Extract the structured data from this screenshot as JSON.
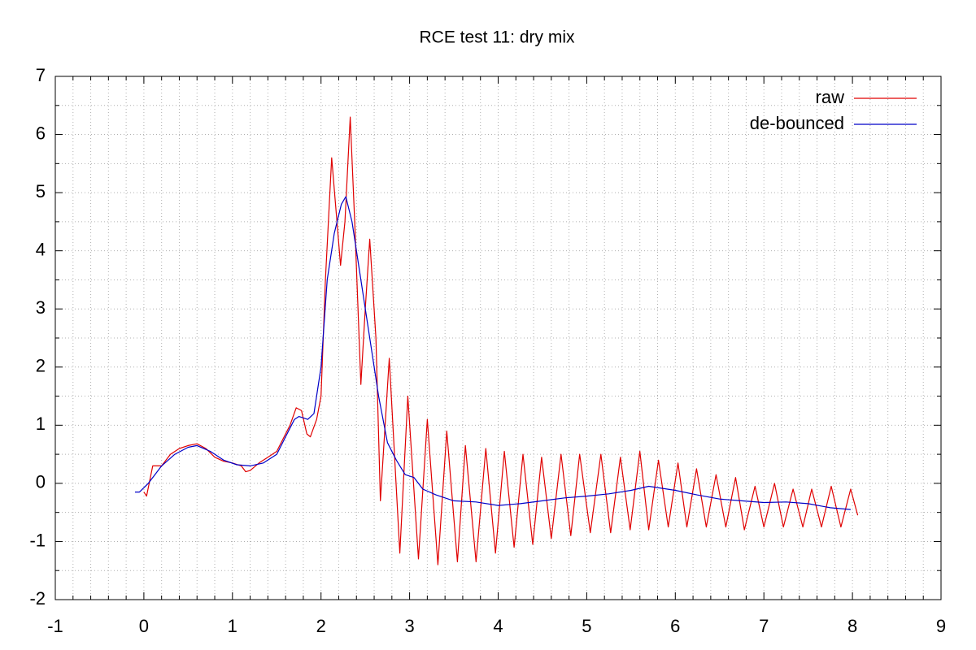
{
  "chart_data": {
    "type": "line",
    "title": "RCE test 11: dry mix",
    "xlim": [
      -1,
      9
    ],
    "ylim": [
      -2,
      7
    ],
    "xticks": [
      -1,
      0,
      1,
      2,
      3,
      4,
      5,
      6,
      7,
      8,
      9
    ],
    "yticks": [
      -2,
      -1,
      0,
      1,
      2,
      3,
      4,
      5,
      6,
      7
    ],
    "xminor": [
      -0.8,
      -0.6,
      -0.4,
      -0.2,
      0.2,
      0.4,
      0.6,
      0.8,
      1.2,
      1.4,
      1.6,
      1.8,
      2.2,
      2.4,
      2.6,
      2.8,
      3.2,
      3.4,
      3.6,
      3.8,
      4.2,
      4.4,
      4.6,
      4.8,
      5.2,
      5.4,
      5.6,
      5.8,
      6.2,
      6.4,
      6.6,
      6.8,
      7.2,
      7.4,
      7.6,
      7.8,
      8.2,
      8.4,
      8.6,
      8.8
    ],
    "yminor": [
      -1.5,
      -0.5,
      0.5,
      1.5,
      2.5,
      3.5,
      4.5,
      5.5,
      6.5
    ],
    "grid": true,
    "legend": "top-right",
    "series": [
      {
        "name": "raw",
        "color": "#e00000",
        "x": [
          0,
          0.03,
          0.1,
          0.2,
          0.3,
          0.4,
          0.5,
          0.6,
          0.7,
          0.8,
          0.9,
          1.0,
          1.1,
          1.15,
          1.2,
          1.3,
          1.4,
          1.5,
          1.6,
          1.65,
          1.72,
          1.78,
          1.84,
          1.88,
          1.95,
          2.0,
          2.05,
          2.12,
          2.18,
          2.22,
          2.27,
          2.33,
          2.38,
          2.45,
          2.5,
          2.55,
          2.62,
          2.67,
          2.77,
          2.89,
          2.98,
          3.1,
          3.2,
          3.32,
          3.42,
          3.54,
          3.63,
          3.75,
          3.86,
          3.97,
          4.07,
          4.18,
          4.28,
          4.39,
          4.49,
          4.6,
          4.71,
          4.82,
          4.92,
          5.04,
          5.16,
          5.27,
          5.38,
          5.49,
          5.6,
          5.7,
          5.81,
          5.92,
          6.03,
          6.13,
          6.24,
          6.35,
          6.46,
          6.57,
          6.68,
          6.78,
          6.9,
          7.0,
          7.12,
          7.22,
          7.33,
          7.44,
          7.54,
          7.65,
          7.76,
          7.87,
          7.98,
          8.06
        ],
        "values": [
          -0.15,
          -0.22,
          0.3,
          0.3,
          0.5,
          0.6,
          0.65,
          0.68,
          0.6,
          0.45,
          0.38,
          0.35,
          0.3,
          0.2,
          0.22,
          0.35,
          0.45,
          0.55,
          0.85,
          1.0,
          1.3,
          1.25,
          0.85,
          0.8,
          1.1,
          1.5,
          3.5,
          5.6,
          4.5,
          3.75,
          4.5,
          6.3,
          4.5,
          1.7,
          3.0,
          4.2,
          2.5,
          -0.3,
          2.15,
          -1.2,
          1.5,
          -1.3,
          1.1,
          -1.4,
          0.9,
          -1.35,
          0.65,
          -1.35,
          0.6,
          -1.2,
          0.55,
          -1.1,
          0.5,
          -1.05,
          0.45,
          -0.95,
          0.5,
          -0.9,
          0.5,
          -0.85,
          0.5,
          -0.85,
          0.45,
          -0.8,
          0.55,
          -0.8,
          0.4,
          -0.75,
          0.35,
          -0.75,
          0.25,
          -0.75,
          0.15,
          -0.75,
          0.1,
          -0.8,
          -0.05,
          -0.75,
          0,
          -0.75,
          -0.1,
          -0.75,
          -0.1,
          -0.75,
          -0.05,
          -0.75,
          -0.1,
          -0.55
        ]
      },
      {
        "name": "de-bounced",
        "color": "#0000c8",
        "x": [
          -0.1,
          -0.05,
          0.05,
          0.1,
          0.2,
          0.35,
          0.5,
          0.6,
          0.75,
          0.9,
          1.05,
          1.2,
          1.35,
          1.5,
          1.6,
          1.7,
          1.75,
          1.85,
          1.92,
          2.0,
          2.07,
          2.15,
          2.23,
          2.28,
          2.35,
          2.45,
          2.55,
          2.65,
          2.75,
          2.85,
          2.95,
          3.05,
          3.15,
          3.3,
          3.5,
          3.75,
          4.0,
          4.25,
          4.5,
          4.75,
          5.0,
          5.25,
          5.5,
          5.7,
          6.0,
          6.25,
          6.5,
          6.75,
          7.0,
          7.25,
          7.5,
          7.75,
          7.98
        ],
        "values": [
          -0.15,
          -0.15,
          0,
          0.1,
          0.3,
          0.5,
          0.62,
          0.65,
          0.55,
          0.4,
          0.32,
          0.3,
          0.35,
          0.5,
          0.8,
          1.1,
          1.15,
          1.1,
          1.2,
          2.0,
          3.5,
          4.3,
          4.8,
          4.93,
          4.5,
          3.5,
          2.5,
          1.5,
          0.7,
          0.4,
          0.15,
          0.1,
          -0.1,
          -0.2,
          -0.3,
          -0.32,
          -0.38,
          -0.35,
          -0.3,
          -0.25,
          -0.22,
          -0.18,
          -0.12,
          -0.05,
          -0.12,
          -0.2,
          -0.27,
          -0.3,
          -0.33,
          -0.32,
          -0.35,
          -0.42,
          -0.45
        ]
      }
    ]
  }
}
